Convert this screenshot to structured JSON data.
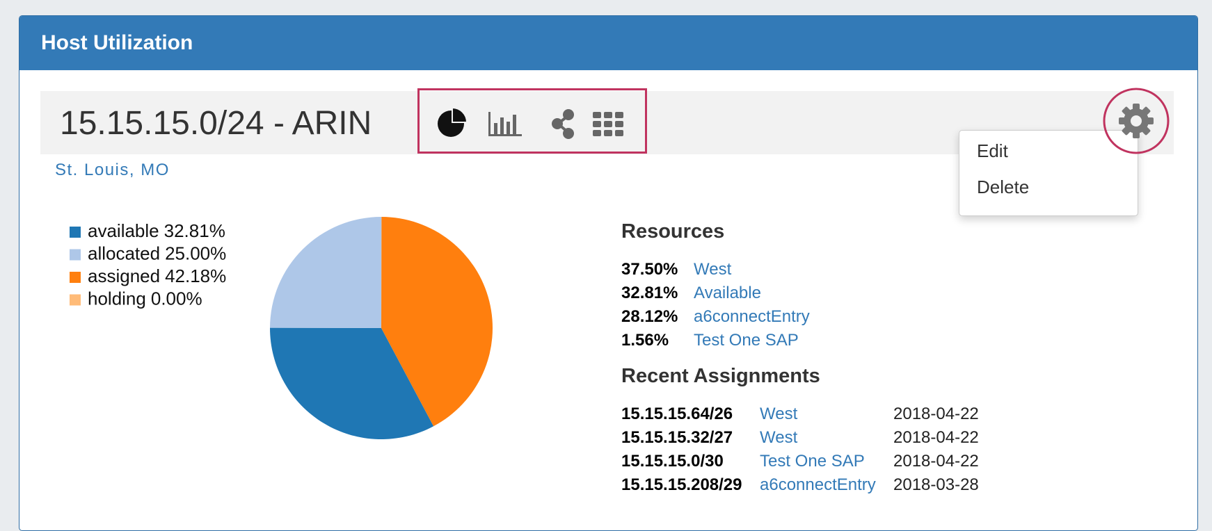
{
  "header": {
    "title": "Host Utilization"
  },
  "block": {
    "title": "15.15.15.0/24 - ARIN",
    "location": "St. Louis, MO"
  },
  "menu": {
    "items": [
      "Edit",
      "Delete"
    ]
  },
  "chart_data": {
    "type": "pie",
    "categories": [
      "available",
      "allocated",
      "assigned",
      "holding"
    ],
    "values": [
      32.81,
      25.0,
      42.18,
      0.0
    ],
    "value_labels": [
      "32.81%",
      "25.00%",
      "42.18%",
      "0.00%"
    ],
    "colors": [
      "#1f77b4",
      "#aec7e8",
      "#ff7f0e",
      "#ffbb78"
    ],
    "startangle": 152,
    "direction": "clockwise",
    "legend": "top-left"
  },
  "resources": {
    "title": "Resources",
    "rows": [
      [
        "37.50%",
        "West"
      ],
      [
        "32.81%",
        "Available"
      ],
      [
        "28.12%",
        "a6connectEntry"
      ],
      [
        "1.56%",
        "Test One SAP"
      ]
    ]
  },
  "recent": {
    "title": "Recent Assignments",
    "rows": [
      [
        "15.15.15.64/26",
        "West",
        "2018-04-22"
      ],
      [
        "15.15.15.32/27",
        "West",
        "2018-04-22"
      ],
      [
        "15.15.15.0/30",
        "Test One SAP",
        "2018-04-22"
      ],
      [
        "15.15.15.208/29",
        "a6connectEntry",
        "2018-03-28"
      ]
    ]
  }
}
